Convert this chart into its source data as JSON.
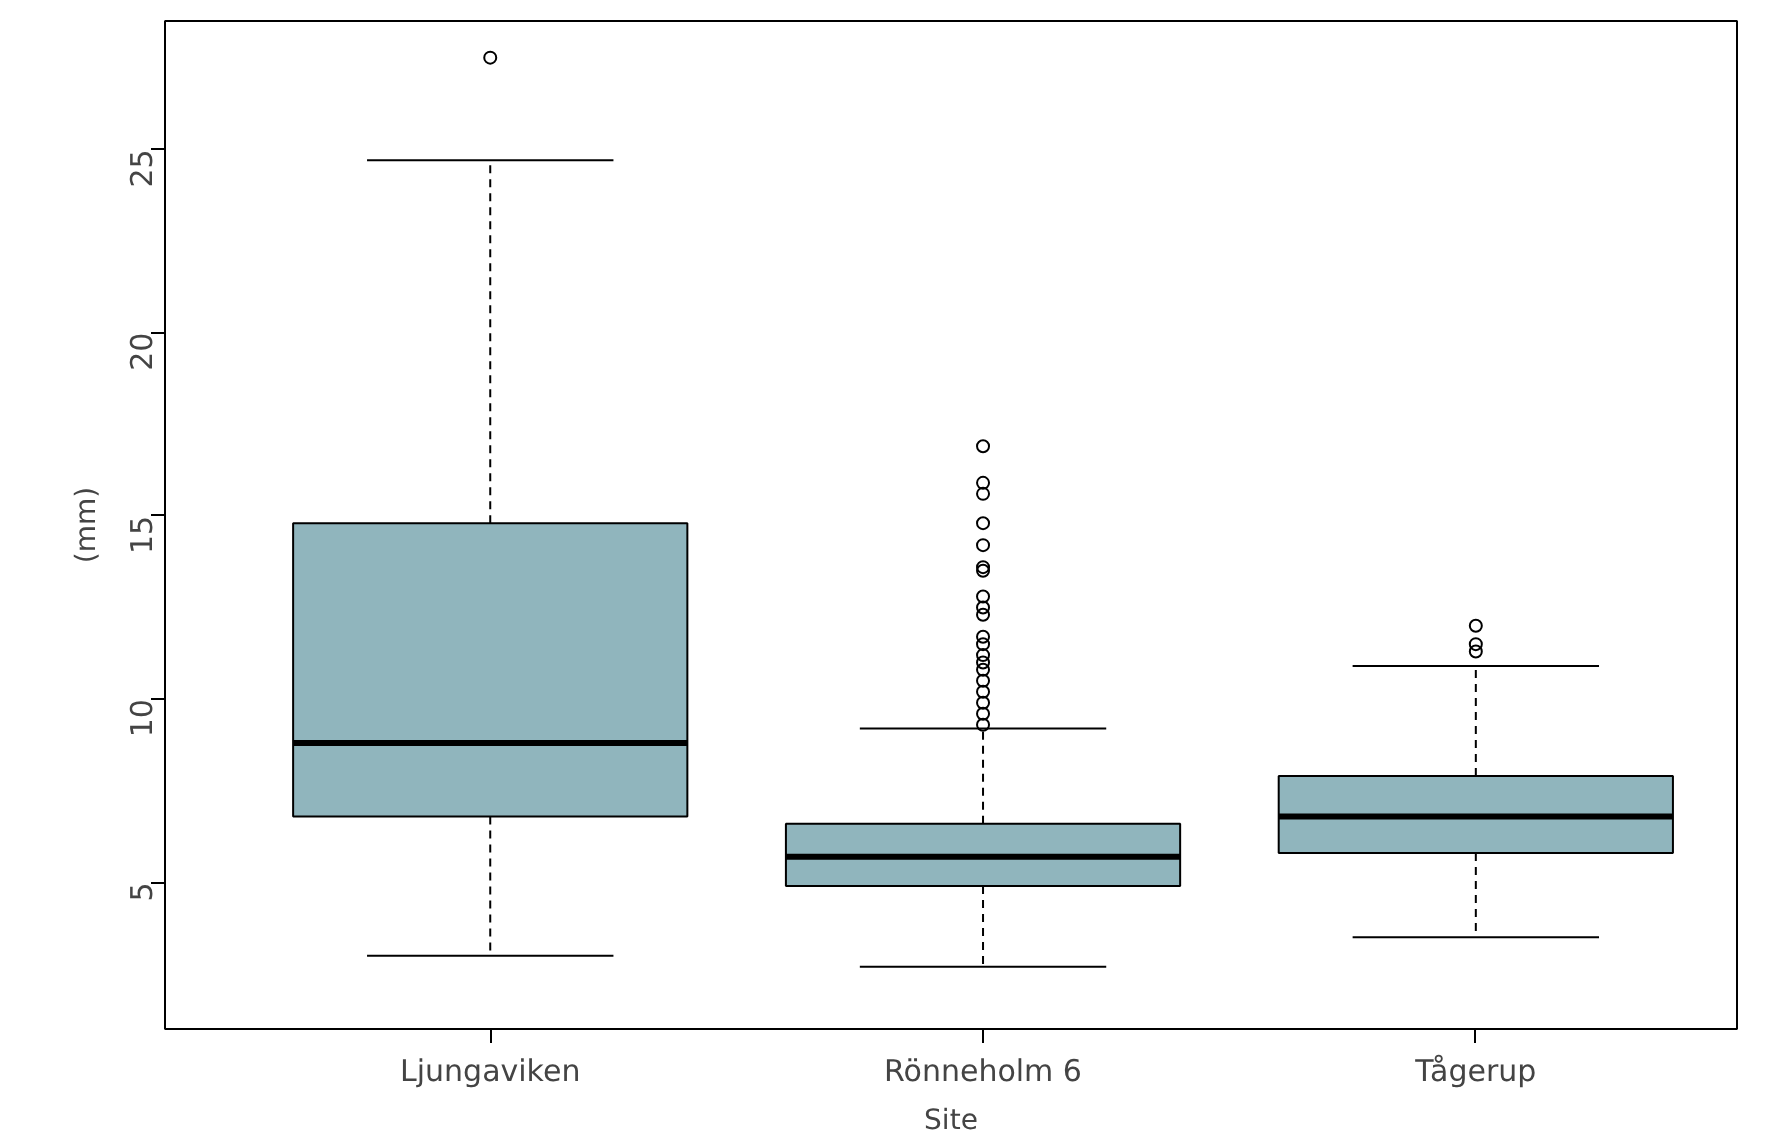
{
  "chart_data": {
    "type": "box",
    "xlabel": "Site",
    "ylabel": "(mm)",
    "categories": [
      "Ljungaviken",
      "Rönneholm 6",
      "Tågerup"
    ],
    "color": "#90b5bd",
    "boxes": [
      {
        "low": 3.0,
        "q1": 6.8,
        "median": 8.8,
        "q3": 14.8,
        "high": 24.7,
        "outliers": [
          27.5
        ]
      },
      {
        "low": 2.7,
        "q1": 4.9,
        "median": 5.7,
        "q3": 6.6,
        "high": 9.2,
        "outliers": [
          16.9,
          15.9,
          15.6,
          14.8,
          14.2,
          13.6,
          13.5,
          12.8,
          12.5,
          12.3,
          11.7,
          11.5,
          11.2,
          11.0,
          10.8,
          10.5,
          10.2,
          9.9,
          9.6,
          9.3
        ]
      },
      {
        "low": 3.5,
        "q1": 5.8,
        "median": 6.8,
        "q3": 7.9,
        "high": 10.9,
        "outliers": [
          12.0,
          11.5,
          11.3
        ]
      }
    ],
    "ylim": [
      1.0,
      28.5
    ],
    "yticks": [
      5,
      10,
      15,
      20,
      25
    ],
    "grid": false
  }
}
